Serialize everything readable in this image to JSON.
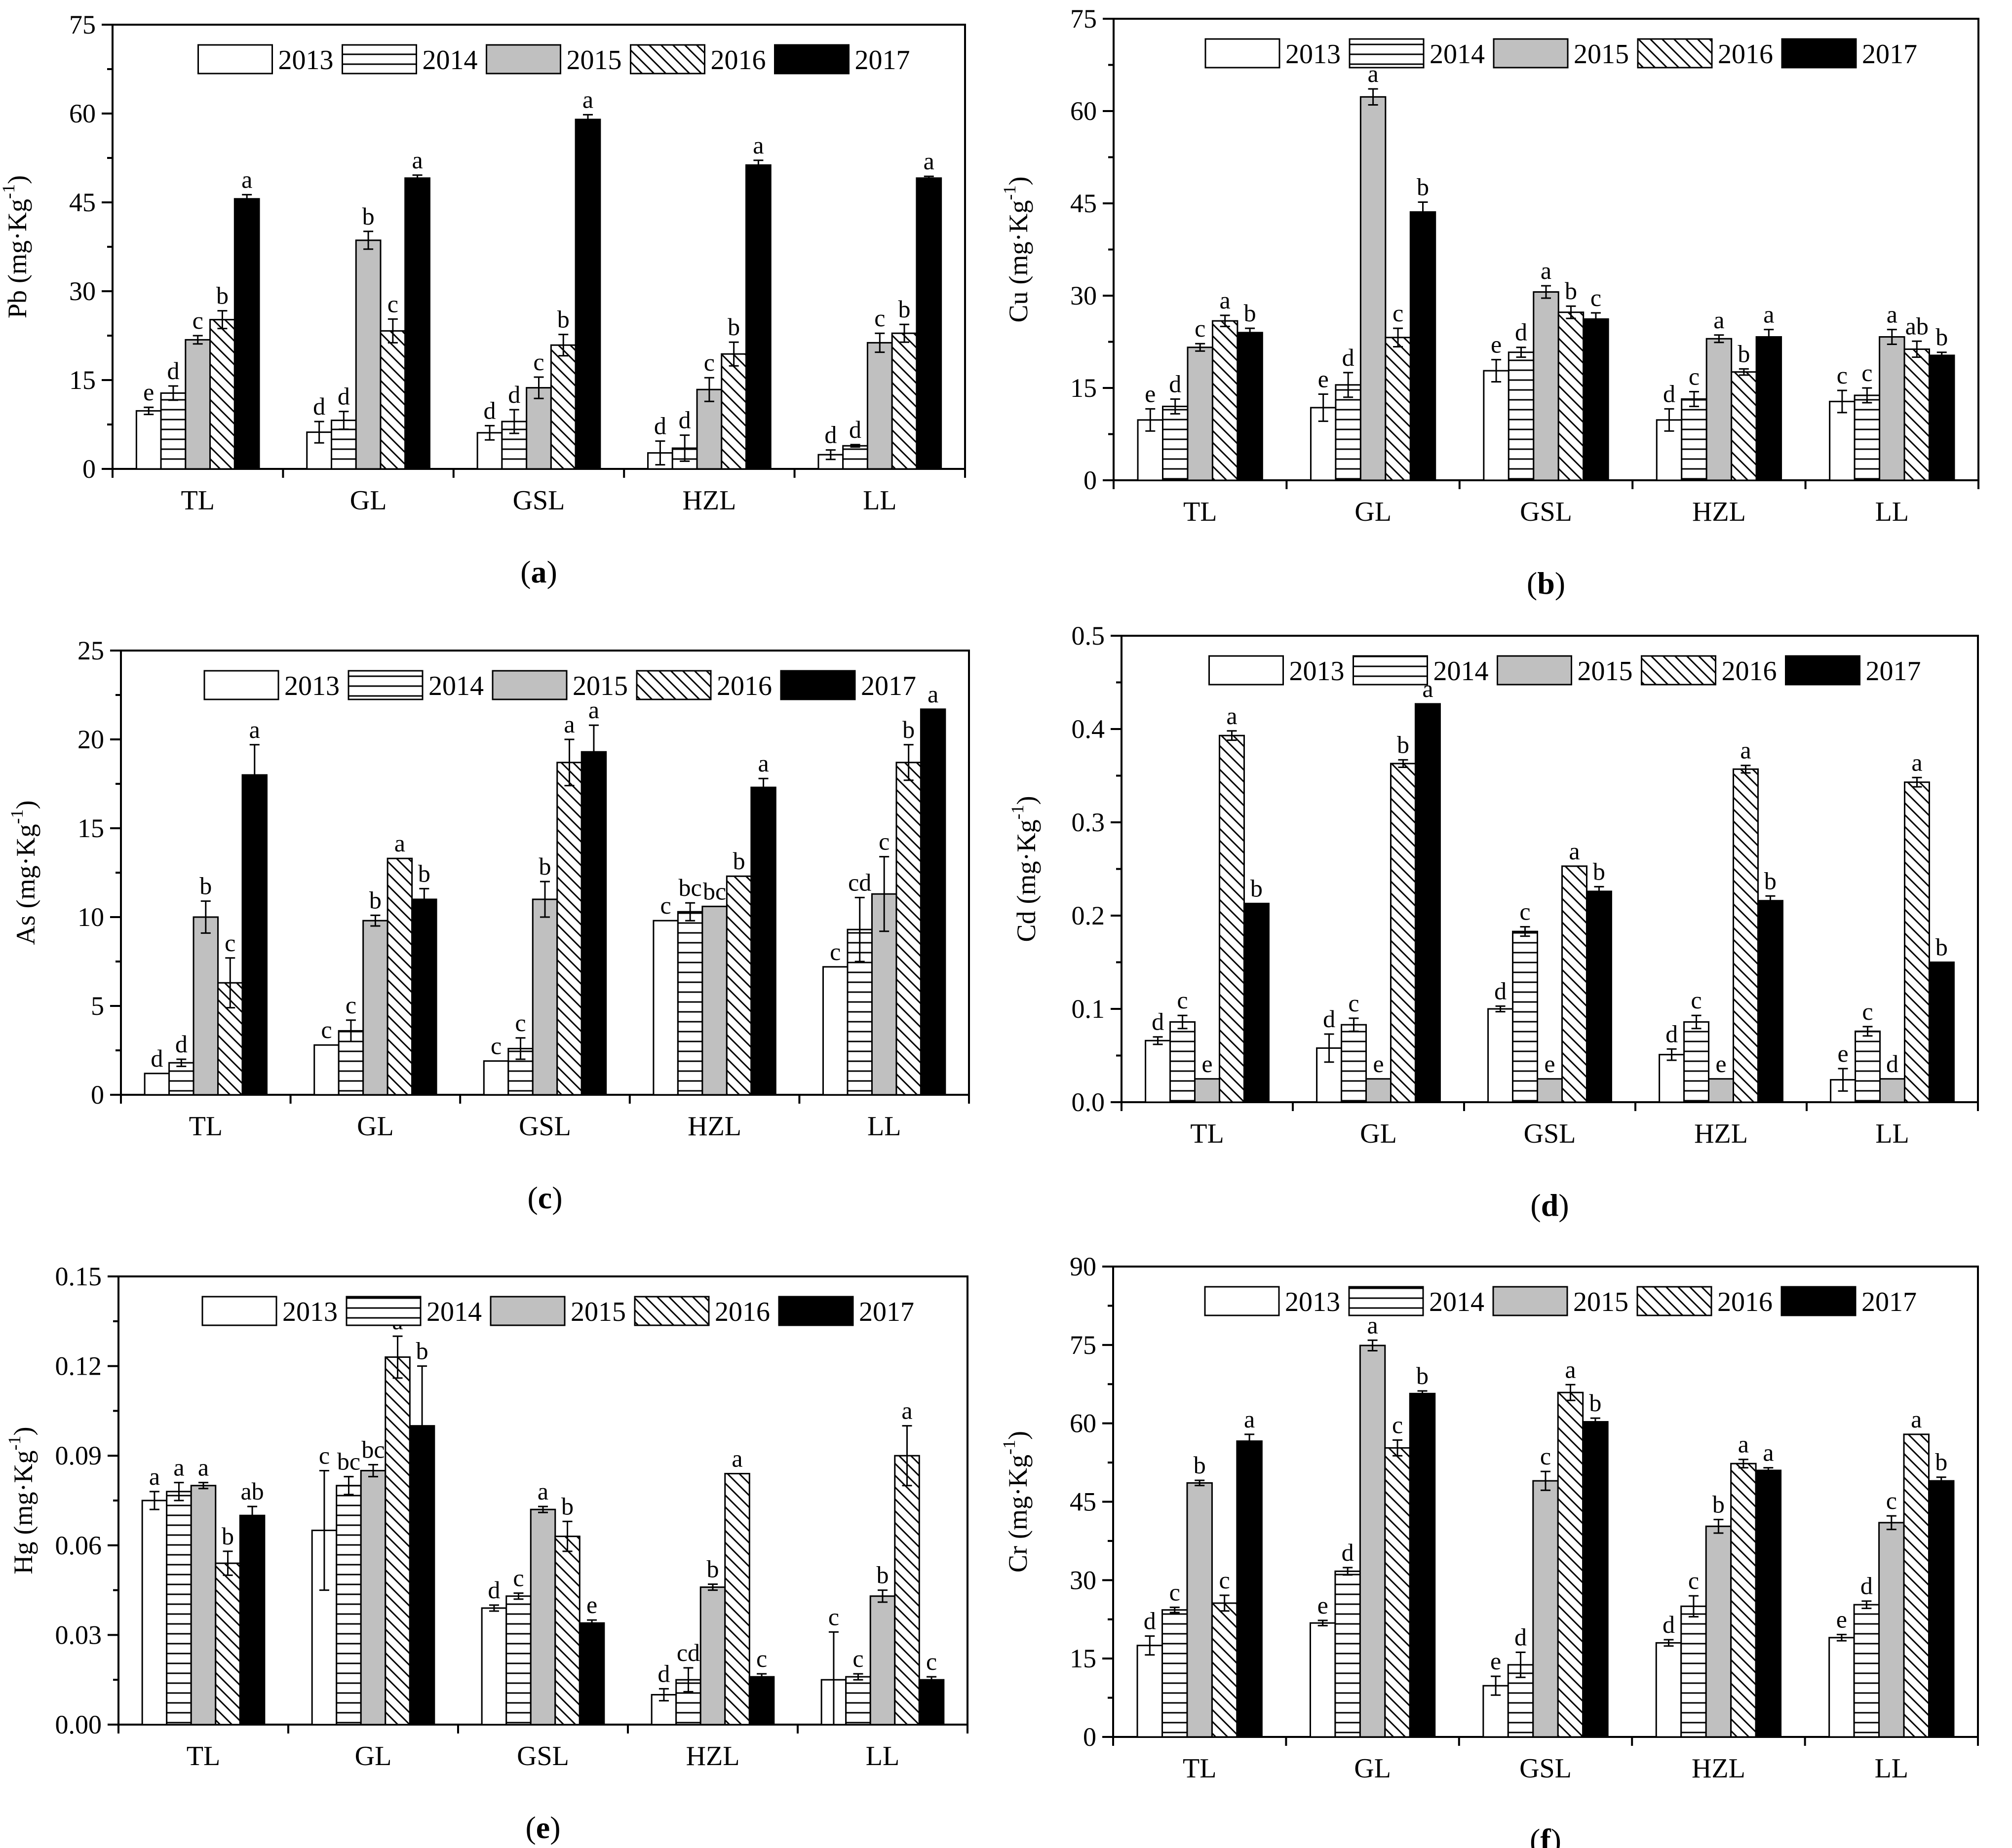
{
  "figure": {
    "legend_years": [
      "2013",
      "2014",
      "2015",
      "2016",
      "2017"
    ],
    "categories": [
      "TL",
      "GL",
      "GSL",
      "HZL",
      "LL"
    ]
  },
  "colors": {
    "2013": "#ffffff",
    "2014": "#ffffff",
    "2015": "#c0c0c0",
    "2016": "#ffffff",
    "2017": "#000000",
    "stroke": "#000000"
  },
  "chart_data": [
    {
      "type": "bar",
      "panel_label": "a",
      "ylabel_element": "Pb",
      "ylabel_unit": "mg·Kg",
      "ylabel_exp": "-1",
      "ylim": [
        0,
        75
      ],
      "yticks": [
        "0",
        "15",
        "30",
        "45",
        "60",
        "75"
      ],
      "categories": [
        "TL",
        "GL",
        "GSL",
        "HZL",
        "LL"
      ],
      "series": [
        {
          "name": "2013",
          "values": [
            9.8,
            6.2,
            6.1,
            2.7,
            2.4
          ],
          "errors": [
            0.6,
            1.8,
            1.2,
            2.0,
            0.8
          ],
          "letters": [
            "e",
            "d",
            "d",
            "d",
            "d"
          ]
        },
        {
          "name": "2014",
          "values": [
            12.8,
            8.2,
            8.0,
            3.5,
            3.9
          ],
          "errors": [
            1.2,
            1.5,
            2.0,
            2.2,
            0.2
          ],
          "letters": [
            "d",
            "d",
            "d",
            "d",
            "d"
          ]
        },
        {
          "name": "2015",
          "values": [
            21.8,
            38.6,
            13.7,
            13.4,
            21.3
          ],
          "errors": [
            0.7,
            1.5,
            1.8,
            2.0,
            1.6
          ],
          "letters": [
            "c",
            "b",
            "c",
            "c",
            "c"
          ]
        },
        {
          "name": "2016",
          "values": [
            25.2,
            23.3,
            20.9,
            19.4,
            22.9
          ],
          "errors": [
            1.5,
            2.0,
            1.8,
            2.0,
            1.5
          ],
          "letters": [
            "b",
            "c",
            "b",
            "b",
            "b"
          ]
        },
        {
          "name": "2017",
          "values": [
            45.6,
            49.1,
            59.0,
            51.3,
            49.1
          ],
          "errors": [
            0.7,
            0.5,
            0.8,
            0.8,
            0.3
          ],
          "letters": [
            "a",
            "a",
            "a",
            "a",
            "a"
          ]
        }
      ]
    },
    {
      "type": "bar",
      "panel_label": "b",
      "ylabel_element": "Cu",
      "ylabel_unit": "mg·Kg",
      "ylabel_exp": "-1",
      "ylim": [
        0,
        75
      ],
      "yticks": [
        "0",
        "15",
        "30",
        "45",
        "60",
        "75"
      ],
      "categories": [
        "TL",
        "GL",
        "GSL",
        "HZL",
        "LL"
      ],
      "series": [
        {
          "name": "2013",
          "values": [
            9.8,
            11.8,
            17.8,
            9.8,
            12.8
          ],
          "errors": [
            1.8,
            2.2,
            1.8,
            1.8,
            1.8
          ],
          "letters": [
            "e",
            "e",
            "e",
            "d",
            "c"
          ]
        },
        {
          "name": "2014",
          "values": [
            12.0,
            15.5,
            20.8,
            13.2,
            13.8
          ],
          "errors": [
            1.2,
            2.0,
            0.8,
            1.2,
            1.2
          ],
          "letters": [
            "d",
            "d",
            "d",
            "c",
            "c"
          ]
        },
        {
          "name": "2015",
          "values": [
            21.6,
            62.3,
            30.6,
            23.0,
            23.3
          ],
          "errors": [
            0.6,
            1.3,
            1.0,
            0.6,
            1.2
          ],
          "letters": [
            "c",
            "a",
            "a",
            "a",
            "a"
          ]
        },
        {
          "name": "2016",
          "values": [
            25.9,
            23.2,
            27.3,
            17.6,
            21.3
          ],
          "errors": [
            0.9,
            1.5,
            1.0,
            0.5,
            1.3
          ],
          "letters": [
            "a",
            "c",
            "b",
            "b",
            "ab"
          ]
        },
        {
          "name": "2017",
          "values": [
            24.0,
            43.6,
            26.2,
            23.3,
            20.3
          ],
          "errors": [
            0.7,
            1.6,
            1.0,
            1.2,
            0.5
          ],
          "letters": [
            "b",
            "b",
            "c",
            "a",
            "b"
          ]
        }
      ]
    },
    {
      "type": "bar",
      "panel_label": "c",
      "ylabel_element": "As",
      "ylabel_unit": "mg·Kg",
      "ylabel_exp": "-1",
      "ylim": [
        0,
        25
      ],
      "yticks": [
        "0",
        "5",
        "10",
        "15",
        "20",
        "25"
      ],
      "categories": [
        "TL",
        "GL",
        "GSL",
        "HZL",
        "LL"
      ],
      "series": [
        {
          "name": "2013",
          "values": [
            1.2,
            2.8,
            1.9,
            9.8,
            7.2
          ],
          "errors": [
            0.0,
            0.0,
            0.0,
            0.0,
            0.0
          ],
          "letters": [
            "d",
            "c",
            "c",
            "c",
            "c"
          ]
        },
        {
          "name": "2014",
          "values": [
            1.8,
            3.6,
            2.6,
            10.3,
            9.3
          ],
          "errors": [
            0.2,
            0.6,
            0.6,
            0.5,
            1.8
          ],
          "letters": [
            "d",
            "c",
            "c",
            "bc",
            "cd"
          ]
        },
        {
          "name": "2015",
          "values": [
            10.0,
            9.8,
            11.0,
            10.6,
            11.3
          ],
          "errors": [
            0.9,
            0.3,
            1.0,
            0.0,
            2.1
          ],
          "letters": [
            "b",
            "b",
            "b",
            "bc",
            "c"
          ]
        },
        {
          "name": "2016",
          "values": [
            6.3,
            13.3,
            18.7,
            12.3,
            18.7
          ],
          "errors": [
            1.4,
            0.0,
            1.3,
            0.0,
            1.0
          ],
          "letters": [
            "c",
            "a",
            "a",
            "b",
            "b"
          ]
        },
        {
          "name": "2017",
          "values": [
            18.0,
            11.0,
            19.3,
            17.3,
            21.7
          ],
          "errors": [
            1.7,
            0.6,
            1.5,
            0.5,
            0.0
          ],
          "letters": [
            "a",
            "b",
            "a",
            "a",
            "a"
          ]
        }
      ]
    },
    {
      "type": "bar",
      "panel_label": "d",
      "ylabel_element": "Cd",
      "ylabel_unit": "mg·Kg",
      "ylabel_exp": "-1",
      "ylim": [
        0,
        0.5
      ],
      "yticks": [
        "0.0",
        "0.1",
        "0.2",
        "0.3",
        "0.4",
        "0.5"
      ],
      "categories": [
        "TL",
        "GL",
        "GSL",
        "HZL",
        "LL"
      ],
      "series": [
        {
          "name": "2013",
          "values": [
            0.066,
            0.058,
            0.1,
            0.051,
            0.024
          ],
          "errors": [
            0.004,
            0.015,
            0.003,
            0.006,
            0.012
          ],
          "letters": [
            "d",
            "d",
            "d",
            "d",
            "e"
          ]
        },
        {
          "name": "2014",
          "values": [
            0.086,
            0.083,
            0.183,
            0.086,
            0.076
          ],
          "errors": [
            0.007,
            0.007,
            0.005,
            0.007,
            0.005
          ],
          "letters": [
            "c",
            "c",
            "c",
            "c",
            "c"
          ]
        },
        {
          "name": "2015",
          "values": [
            0.025,
            0.025,
            0.025,
            0.025,
            0.025
          ],
          "errors": [
            0.0,
            0.0,
            0.0,
            0.0,
            0.0
          ],
          "letters": [
            "e",
            "e",
            "e",
            "e",
            "d"
          ]
        },
        {
          "name": "2016",
          "values": [
            0.393,
            0.363,
            0.253,
            0.357,
            0.343
          ],
          "errors": [
            0.005,
            0.004,
            0.0,
            0.004,
            0.005
          ],
          "letters": [
            "a",
            "b",
            "a",
            "a",
            "a"
          ]
        },
        {
          "name": "2017",
          "values": [
            0.213,
            0.427,
            0.226,
            0.216,
            0.15
          ],
          "errors": [
            0.0,
            0.0,
            0.005,
            0.005,
            0.0
          ],
          "letters": [
            "b",
            "a",
            "b",
            "b",
            "b"
          ]
        }
      ]
    },
    {
      "type": "bar",
      "panel_label": "e",
      "ylabel_element": "Hg",
      "ylabel_unit": "mg·Kg",
      "ylabel_exp": "-1",
      "ylim": [
        0,
        0.15
      ],
      "yticks": [
        "0.00",
        "0.03",
        "0.06",
        "0.09",
        "0.12",
        "0.15"
      ],
      "categories": [
        "TL",
        "GL",
        "GSL",
        "HZL",
        "LL"
      ],
      "series": [
        {
          "name": "2013",
          "values": [
            0.075,
            0.065,
            0.039,
            0.01,
            0.015
          ],
          "errors": [
            0.003,
            0.02,
            0.001,
            0.002,
            0.016
          ],
          "letters": [
            "a",
            "c",
            "d",
            "d",
            "c"
          ]
        },
        {
          "name": "2014",
          "values": [
            0.078,
            0.08,
            0.043,
            0.015,
            0.016
          ],
          "errors": [
            0.003,
            0.003,
            0.001,
            0.004,
            0.001
          ],
          "letters": [
            "a",
            "bc",
            "c",
            "cd",
            "c"
          ]
        },
        {
          "name": "2015",
          "values": [
            0.08,
            0.085,
            0.072,
            0.046,
            0.043
          ],
          "errors": [
            0.001,
            0.002,
            0.001,
            0.001,
            0.002
          ],
          "letters": [
            "a",
            "bc",
            "a",
            "b",
            "b"
          ]
        },
        {
          "name": "2016",
          "values": [
            0.054,
            0.123,
            0.063,
            0.084,
            0.09
          ],
          "errors": [
            0.004,
            0.007,
            0.005,
            0.0,
            0.01
          ],
          "letters": [
            "b",
            "a",
            "b",
            "a",
            "a"
          ]
        },
        {
          "name": "2017",
          "values": [
            0.07,
            0.1,
            0.034,
            0.016,
            0.015
          ],
          "errors": [
            0.003,
            0.02,
            0.001,
            0.001,
            0.001
          ],
          "letters": [
            "ab",
            "b",
            "e",
            "c",
            "c"
          ]
        }
      ]
    },
    {
      "type": "bar",
      "panel_label": "f",
      "ylabel_element": "Cr",
      "ylabel_unit": "mg·Kg",
      "ylabel_exp": "-1",
      "ylim": [
        0,
        90
      ],
      "yticks": [
        "0",
        "15",
        "30",
        "45",
        "60",
        "75",
        "90"
      ],
      "categories": [
        "TL",
        "GL",
        "GSL",
        "HZL",
        "LL"
      ],
      "series": [
        {
          "name": "2013",
          "values": [
            17.5,
            21.8,
            9.8,
            18.0,
            19.0
          ],
          "errors": [
            1.8,
            0.5,
            1.8,
            0.6,
            0.6
          ],
          "letters": [
            "d",
            "e",
            "e",
            "d",
            "e"
          ]
        },
        {
          "name": "2014",
          "values": [
            24.3,
            31.7,
            13.8,
            25.0,
            25.3
          ],
          "errors": [
            0.5,
            0.7,
            2.4,
            2.0,
            0.7
          ],
          "letters": [
            "c",
            "d",
            "d",
            "c",
            "d"
          ]
        },
        {
          "name": "2015",
          "values": [
            48.6,
            74.9,
            49.0,
            40.3,
            41.0
          ],
          "errors": [
            0.5,
            1.0,
            1.8,
            1.3,
            1.3
          ],
          "letters": [
            "b",
            "a",
            "c",
            "b",
            "c"
          ]
        },
        {
          "name": "2016",
          "values": [
            25.6,
            55.3,
            65.9,
            52.3,
            57.9
          ],
          "errors": [
            1.5,
            1.5,
            1.5,
            0.8,
            0.0
          ],
          "letters": [
            "c",
            "c",
            "a",
            "a",
            "a"
          ]
        },
        {
          "name": "2017",
          "values": [
            56.6,
            65.7,
            60.3,
            51.0,
            49.0
          ],
          "errors": [
            1.3,
            0.5,
            0.7,
            0.5,
            0.7
          ],
          "letters": [
            "a",
            "b",
            "b",
            "a",
            "b"
          ]
        }
      ]
    }
  ]
}
